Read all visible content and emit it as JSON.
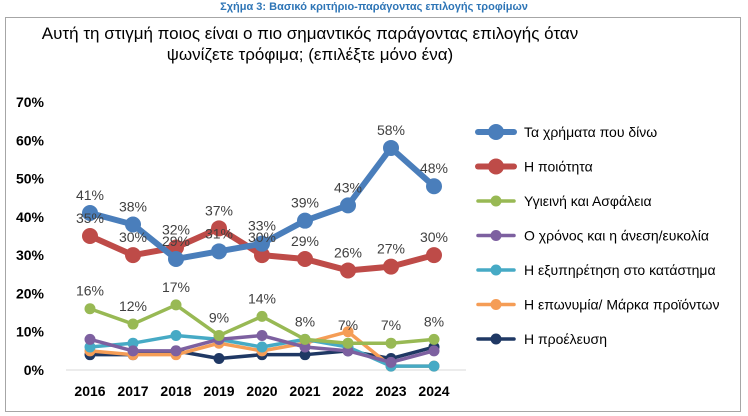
{
  "figure_caption": "Σχήμα 3: Βασικό κριτήριο-παράγοντας επιλογής τροφίμων",
  "chart_data": {
    "type": "line",
    "title_lines": [
      "Αυτή τη στιγμή ποιος είναι ο πιο σημαντικός παράγοντας επιλογής όταν",
      "ψωνίζετε τρόφιμα; (επιλέξτε μόνο ένα)"
    ],
    "categories": [
      "2016",
      "2017",
      "2018",
      "2019",
      "2020",
      "2021",
      "2022",
      "2023",
      "2024"
    ],
    "y_ticks": [
      "0%",
      "10%",
      "20%",
      "30%",
      "40%",
      "50%",
      "60%",
      "70%"
    ],
    "ylim": [
      0,
      70
    ],
    "grid": false,
    "legend_position": "right",
    "series": [
      {
        "name": "Τα χρήματα που δίνω",
        "color": "#4a7ebb",
        "width": 6,
        "marker": 8,
        "values": [
          41,
          38,
          29,
          31,
          33,
          39,
          43,
          58,
          48
        ],
        "labels": [
          "41%",
          "38%",
          "29%",
          "31%",
          "33%",
          "39%",
          "43%",
          "58%",
          "48%"
        ]
      },
      {
        "name": "Η ποιότητα",
        "color": "#be4b48",
        "width": 6,
        "marker": 8,
        "values": [
          35,
          30,
          32,
          37,
          30,
          29,
          26,
          27,
          30
        ],
        "labels": [
          "35%",
          "30%",
          "32%",
          "37%",
          "30%",
          "29%",
          "26%",
          "27%",
          "30%"
        ]
      },
      {
        "name": "Υγιεινή και Ασφάλεια",
        "color": "#98b954",
        "width": 3.5,
        "marker": 5.5,
        "values": [
          16,
          12,
          17,
          9,
          14,
          8,
          7,
          7,
          8
        ],
        "labels": [
          "16%",
          "12%",
          "17%",
          "9%",
          "14%",
          "8%",
          "7%",
          "7%",
          "8%"
        ]
      },
      {
        "name": "Ο χρόνος και η άνεση/ευκολία",
        "color": "#7d60a0",
        "width": 3.5,
        "marker": 5.5,
        "values": [
          8,
          5,
          5,
          8,
          9,
          6,
          5,
          2,
          5
        ]
      },
      {
        "name": "Η εξυπηρέτηση στο κατάστημα",
        "color": "#46aac5",
        "width": 3.5,
        "marker": 5.5,
        "values": [
          6,
          7,
          9,
          8,
          6,
          8,
          6,
          1,
          1
        ]
      },
      {
        "name": "Η επωνυμία/ Μάρκα προϊόντων",
        "color": "#f59d56",
        "width": 3.5,
        "marker": 5.5,
        "values": [
          5,
          4,
          4,
          7,
          5,
          7,
          10,
          1,
          1
        ]
      },
      {
        "name": "Η προέλευση",
        "color": "#1f3864",
        "width": 3.5,
        "marker": 5.5,
        "values": [
          4,
          4,
          5,
          3,
          4,
          4,
          5,
          3,
          6
        ]
      }
    ]
  }
}
